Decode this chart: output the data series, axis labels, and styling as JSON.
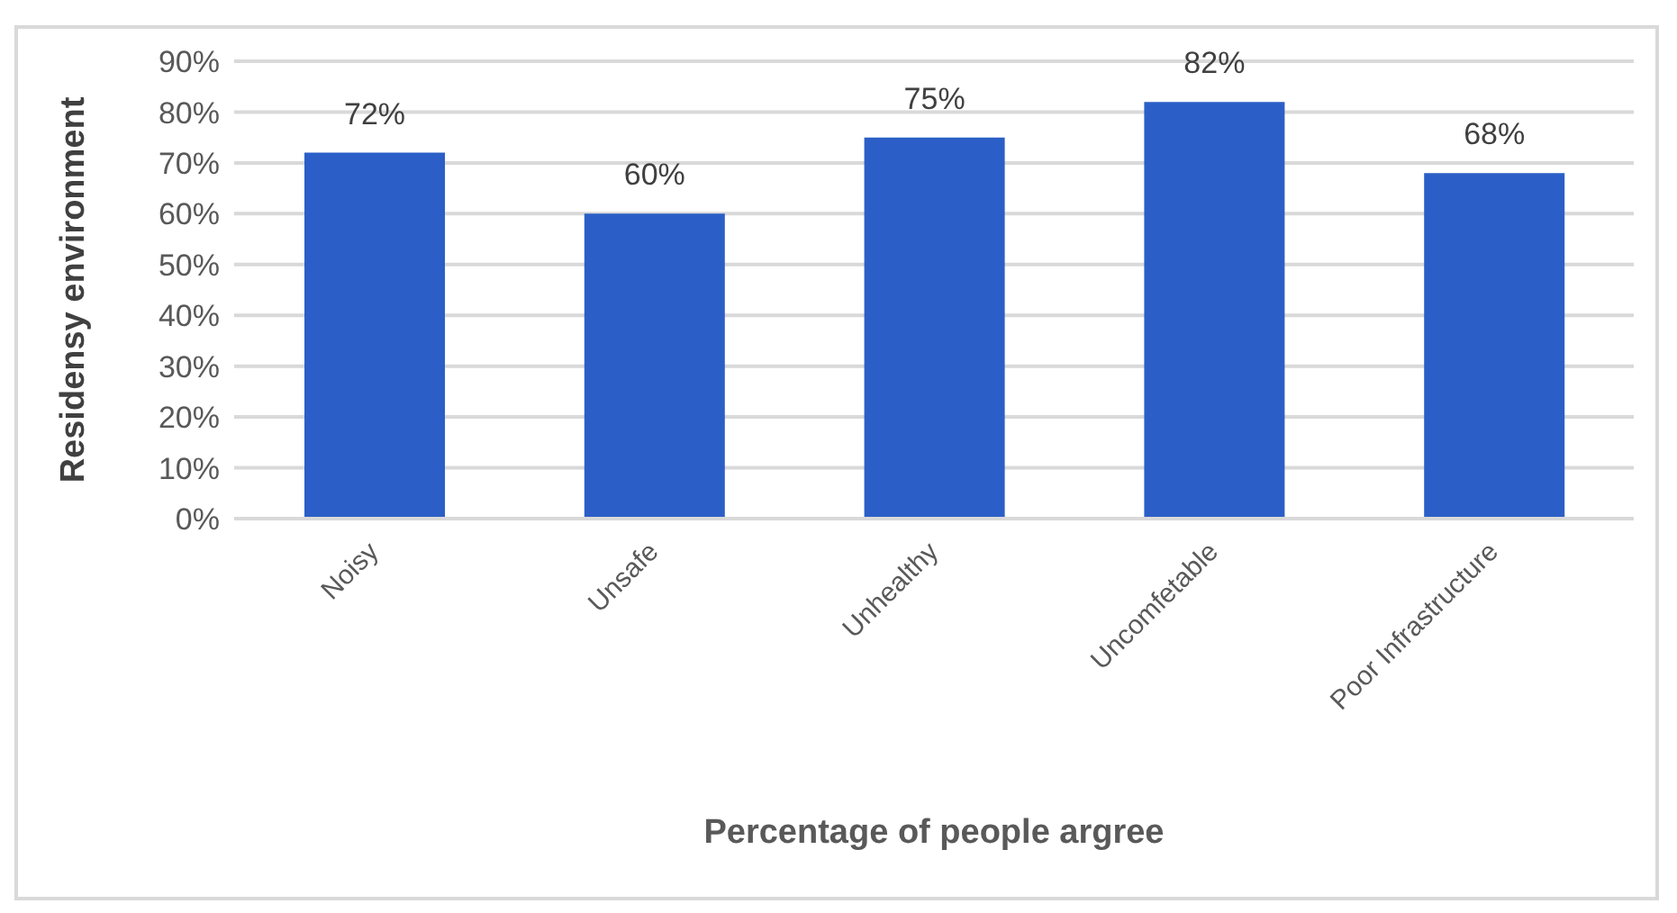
{
  "chart_data": {
    "type": "bar",
    "xlabel": "Percentage of people argree",
    "ylabel": "Residensy environment",
    "categories": [
      "Noisy",
      "Unsafe",
      "Unhealthy",
      "Uncomfetable",
      "Poor Infrastructure"
    ],
    "values": [
      72,
      60,
      75,
      82,
      68
    ],
    "value_labels": [
      "72%",
      "60%",
      "75%",
      "82%",
      "68%"
    ],
    "color": "#2b5fc7",
    "ylim": [
      0,
      90
    ],
    "yticks": [
      {
        "value": 0,
        "label": "0%"
      },
      {
        "value": 10,
        "label": "10%"
      },
      {
        "value": 20,
        "label": "20%"
      },
      {
        "value": 30,
        "label": "30%"
      },
      {
        "value": 40,
        "label": "40%"
      },
      {
        "value": 50,
        "label": "50%"
      },
      {
        "value": 60,
        "label": "60%"
      },
      {
        "value": 70,
        "label": "70%"
      },
      {
        "value": 80,
        "label": "80%"
      },
      {
        "value": 90,
        "label": "90%"
      }
    ],
    "grid": "y"
  }
}
